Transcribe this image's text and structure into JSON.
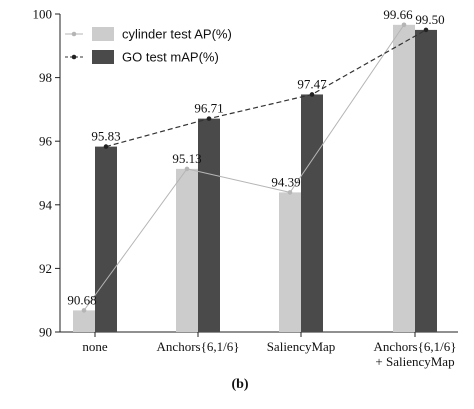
{
  "chart_data": {
    "type": "bar",
    "categories": [
      "none",
      "Anchors{6,1/6}",
      "SaliencyMap",
      "Anchors{6,1/6}\n+ SaliencyMap"
    ],
    "series": [
      {
        "name": "cylinder test AP(%)",
        "values": [
          90.68,
          95.13,
          94.39,
          99.66
        ],
        "bar_color": "#cccccc",
        "line_color": "#b5b5b5",
        "line_style": "solid",
        "marker_color": "#b5b5b5"
      },
      {
        "name": "GO test mAP(%)",
        "values": [
          95.83,
          96.71,
          97.47,
          99.5
        ],
        "bar_color": "#4a4a4a",
        "line_color": "#333333",
        "line_style": "dashed",
        "marker_color": "#222222"
      }
    ],
    "ylim": [
      90,
      100
    ],
    "yticks": [
      90,
      92,
      94,
      96,
      98,
      100
    ],
    "data_labels": [
      [
        "90.68",
        "95.13",
        "94.39",
        "99.66"
      ],
      [
        "95.83",
        "96.71",
        "97.47",
        "99.50"
      ]
    ],
    "legend_position": "top-left",
    "grid": false,
    "title": "",
    "xlabel": "",
    "ylabel": ""
  },
  "caption": "(b)"
}
